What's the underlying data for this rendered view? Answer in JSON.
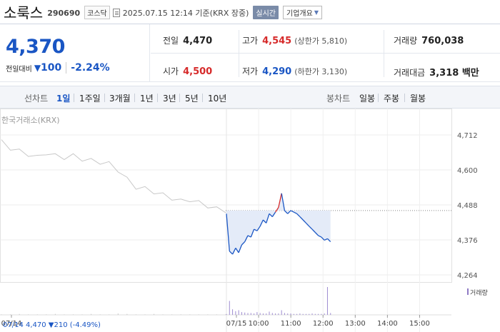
{
  "header": {
    "name": "소룩스",
    "code": "290690",
    "market": "코스닥",
    "timestamp": "2025.07.15 12:14 기준(KRX 장중)",
    "realtime_label": "실시간",
    "company_label": "기업개요"
  },
  "quote": {
    "price": "4,370",
    "change_label": "전일대비",
    "change_arrow": "▼",
    "change": "100",
    "change_rate": "-2.24%",
    "prev_close_label": "전일",
    "prev_close": "4,470",
    "open_label": "시가",
    "open": "4,500",
    "high_label": "고가",
    "high": "4,545",
    "upper_limit": "(상한가 5,810)",
    "low_label": "저가",
    "low": "4,290",
    "lower_limit": "(하한가 3,130)",
    "volume_label": "거래량",
    "volume": "760,038",
    "amount_label": "거래대금",
    "amount": "3,318 백만"
  },
  "period_bar": {
    "line_label": "선차트",
    "line_periods": [
      "1일",
      "1주일",
      "3개월",
      "1년",
      "3년",
      "5년",
      "10년"
    ],
    "active_index": 0,
    "candle_label": "봉차트",
    "candle_periods": [
      "일봉",
      "주봉",
      "월봉"
    ]
  },
  "chart_data": {
    "type": "line",
    "source_label": "한국거래소(KRX)",
    "y_ticks": [
      4712,
      4600,
      4488,
      4376,
      4264
    ],
    "y_tick_labels": [
      "4,712",
      "4,600",
      "4,488",
      "4,376",
      "4,264"
    ],
    "ylim": [
      4264,
      4712
    ],
    "x_tick_labels": [
      "07/14",
      "07/15",
      "10:00",
      "11:00",
      "12:00",
      "13:00",
      "14:00",
      "15:00"
    ],
    "prev_close": 4470,
    "volume_label": "거래량",
    "footer": "07/14  4,470  ▼210  (-4.49%)",
    "series": [
      {
        "values_prev_day": [
          4690,
          4670,
          4660,
          4650,
          4640,
          4655,
          4645,
          4640,
          4645,
          4635,
          4630,
          4625,
          4620,
          4600,
          4570,
          4545,
          4540,
          4530,
          4520,
          4510,
          4500,
          4505,
          4495,
          4485,
          4475,
          4470
        ],
        "values_today": [
          4460,
          4340,
          4330,
          4350,
          4335,
          4360,
          4370,
          4390,
          4385,
          4410,
          4405,
          4420,
          4440,
          4430,
          4460,
          4450,
          4465,
          4480,
          4525,
          4470,
          4460,
          4470,
          4465,
          4460,
          4450,
          4440,
          4430,
          4420,
          4410,
          4400,
          4390,
          4385,
          4375,
          4380,
          4370
        ]
      }
    ],
    "volume_today": [
      2,
      30,
      12,
      8,
      10,
      6,
      5,
      4,
      4,
      3,
      6,
      4,
      3,
      3,
      7,
      4,
      3,
      3,
      10,
      4,
      3,
      3,
      2,
      2,
      3,
      2,
      2,
      2,
      3,
      2,
      2,
      2,
      3,
      60,
      4
    ],
    "volume_prev": [
      1,
      1,
      2,
      1,
      1,
      1,
      2,
      1,
      1,
      1,
      2,
      1,
      1,
      3,
      2,
      1,
      1,
      2,
      1,
      1,
      1,
      1,
      1,
      1,
      1,
      1
    ],
    "colors": {
      "up": "#d62a2a",
      "down": "#1a56c4",
      "prev": "#c8c8c8",
      "fill": "#e4ebf8"
    }
  }
}
